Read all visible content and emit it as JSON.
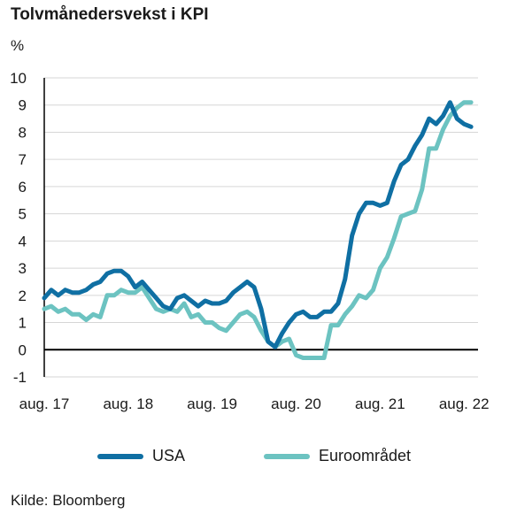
{
  "title": "Tolvmånedersvekst i KPI",
  "unit": "%",
  "source": "Kilde: Bloomberg",
  "colors": {
    "usa": "#0f6fa3",
    "euro": "#6cc3c1",
    "grid": "#d6d6d6",
    "axis": "#000000"
  },
  "legend": [
    {
      "label": "USA",
      "color": "#0f6fa3"
    },
    {
      "label": "Euroområdet",
      "color": "#6cc3c1"
    }
  ],
  "chart_data": {
    "type": "line",
    "title": "Tolvmånedersvekst i KPI",
    "ylabel": "%",
    "ylim": [
      -1,
      10
    ],
    "yticks": [
      -1,
      0,
      1,
      2,
      3,
      4,
      5,
      6,
      7,
      8,
      9,
      10
    ],
    "xlim": [
      "2017-08",
      "2022-10"
    ],
    "xticks": [
      {
        "date": "2017-08",
        "label": "aug. 17"
      },
      {
        "date": "2018-08",
        "label": "aug. 18"
      },
      {
        "date": "2019-08",
        "label": "aug. 19"
      },
      {
        "date": "2020-08",
        "label": "aug. 20"
      },
      {
        "date": "2021-08",
        "label": "aug. 21"
      },
      {
        "date": "2022-08",
        "label": "aug. 22"
      }
    ],
    "grid": true,
    "legend_position": "bottom",
    "series": [
      {
        "name": "USA",
        "points": [
          [
            "2017-08",
            1.9
          ],
          [
            "2017-09",
            2.2
          ],
          [
            "2017-10",
            2.0
          ],
          [
            "2017-11",
            2.2
          ],
          [
            "2017-12",
            2.1
          ],
          [
            "2018-01",
            2.1
          ],
          [
            "2018-02",
            2.2
          ],
          [
            "2018-03",
            2.4
          ],
          [
            "2018-04",
            2.5
          ],
          [
            "2018-05",
            2.8
          ],
          [
            "2018-06",
            2.9
          ],
          [
            "2018-07",
            2.9
          ],
          [
            "2018-08",
            2.7
          ],
          [
            "2018-09",
            2.3
          ],
          [
            "2018-10",
            2.5
          ],
          [
            "2018-11",
            2.2
          ],
          [
            "2018-12",
            1.9
          ],
          [
            "2019-01",
            1.6
          ],
          [
            "2019-02",
            1.5
          ],
          [
            "2019-03",
            1.9
          ],
          [
            "2019-04",
            2.0
          ],
          [
            "2019-05",
            1.8
          ],
          [
            "2019-06",
            1.6
          ],
          [
            "2019-07",
            1.8
          ],
          [
            "2019-08",
            1.7
          ],
          [
            "2019-09",
            1.7
          ],
          [
            "2019-10",
            1.8
          ],
          [
            "2019-11",
            2.1
          ],
          [
            "2019-12",
            2.3
          ],
          [
            "2020-01",
            2.5
          ],
          [
            "2020-02",
            2.3
          ],
          [
            "2020-03",
            1.5
          ],
          [
            "2020-04",
            0.3
          ],
          [
            "2020-05",
            0.1
          ],
          [
            "2020-06",
            0.6
          ],
          [
            "2020-07",
            1.0
          ],
          [
            "2020-08",
            1.3
          ],
          [
            "2020-09",
            1.4
          ],
          [
            "2020-10",
            1.2
          ],
          [
            "2020-11",
            1.2
          ],
          [
            "2020-12",
            1.4
          ],
          [
            "2021-01",
            1.4
          ],
          [
            "2021-02",
            1.7
          ],
          [
            "2021-03",
            2.6
          ],
          [
            "2021-04",
            4.2
          ],
          [
            "2021-05",
            5.0
          ],
          [
            "2021-06",
            5.4
          ],
          [
            "2021-07",
            5.4
          ],
          [
            "2021-08",
            5.3
          ],
          [
            "2021-09",
            5.4
          ],
          [
            "2021-10",
            6.2
          ],
          [
            "2021-11",
            6.8
          ],
          [
            "2021-12",
            7.0
          ],
          [
            "2022-01",
            7.5
          ],
          [
            "2022-02",
            7.9
          ],
          [
            "2022-03",
            8.5
          ],
          [
            "2022-04",
            8.3
          ],
          [
            "2022-05",
            8.6
          ],
          [
            "2022-06",
            9.1
          ],
          [
            "2022-07",
            8.5
          ],
          [
            "2022-08",
            8.3
          ],
          [
            "2022-09",
            8.2
          ]
        ]
      },
      {
        "name": "Euroområdet",
        "points": [
          [
            "2017-08",
            1.5
          ],
          [
            "2017-09",
            1.6
          ],
          [
            "2017-10",
            1.4
          ],
          [
            "2017-11",
            1.5
          ],
          [
            "2017-12",
            1.3
          ],
          [
            "2018-01",
            1.3
          ],
          [
            "2018-02",
            1.1
          ],
          [
            "2018-03",
            1.3
          ],
          [
            "2018-04",
            1.2
          ],
          [
            "2018-05",
            2.0
          ],
          [
            "2018-06",
            2.0
          ],
          [
            "2018-07",
            2.2
          ],
          [
            "2018-08",
            2.1
          ],
          [
            "2018-09",
            2.1
          ],
          [
            "2018-10",
            2.3
          ],
          [
            "2018-11",
            1.9
          ],
          [
            "2018-12",
            1.5
          ],
          [
            "2019-01",
            1.4
          ],
          [
            "2019-02",
            1.5
          ],
          [
            "2019-03",
            1.4
          ],
          [
            "2019-04",
            1.7
          ],
          [
            "2019-05",
            1.2
          ],
          [
            "2019-06",
            1.3
          ],
          [
            "2019-07",
            1.0
          ],
          [
            "2019-08",
            1.0
          ],
          [
            "2019-09",
            0.8
          ],
          [
            "2019-10",
            0.7
          ],
          [
            "2019-11",
            1.0
          ],
          [
            "2019-12",
            1.3
          ],
          [
            "2020-01",
            1.4
          ],
          [
            "2020-02",
            1.2
          ],
          [
            "2020-03",
            0.7
          ],
          [
            "2020-04",
            0.3
          ],
          [
            "2020-05",
            0.1
          ],
          [
            "2020-06",
            0.3
          ],
          [
            "2020-07",
            0.4
          ],
          [
            "2020-08",
            -0.2
          ],
          [
            "2020-09",
            -0.3
          ],
          [
            "2020-10",
            -0.3
          ],
          [
            "2020-11",
            -0.3
          ],
          [
            "2020-12",
            -0.3
          ],
          [
            "2021-01",
            0.9
          ],
          [
            "2021-02",
            0.9
          ],
          [
            "2021-03",
            1.3
          ],
          [
            "2021-04",
            1.6
          ],
          [
            "2021-05",
            2.0
          ],
          [
            "2021-06",
            1.9
          ],
          [
            "2021-07",
            2.2
          ],
          [
            "2021-08",
            3.0
          ],
          [
            "2021-09",
            3.4
          ],
          [
            "2021-10",
            4.1
          ],
          [
            "2021-11",
            4.9
          ],
          [
            "2021-12",
            5.0
          ],
          [
            "2022-01",
            5.1
          ],
          [
            "2022-02",
            5.9
          ],
          [
            "2022-03",
            7.4
          ],
          [
            "2022-04",
            7.4
          ],
          [
            "2022-05",
            8.1
          ],
          [
            "2022-06",
            8.6
          ],
          [
            "2022-07",
            8.9
          ],
          [
            "2022-08",
            9.1
          ],
          [
            "2022-09",
            9.1
          ]
        ]
      }
    ]
  }
}
